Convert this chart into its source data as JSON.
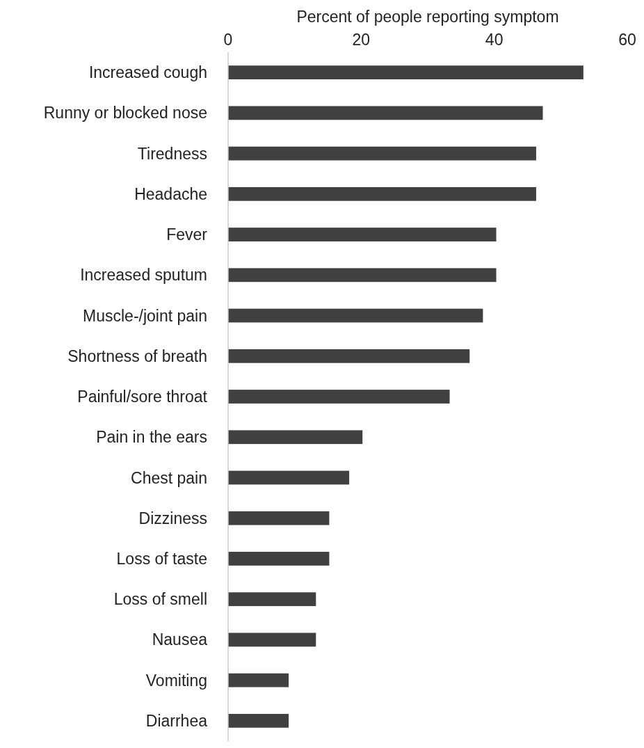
{
  "chart_data": {
    "type": "bar",
    "orientation": "horizontal",
    "xlabel": "Percent of people reporting symptom",
    "categories": [
      "Increased cough",
      "Runny or blocked nose",
      "Tiredness",
      "Headache",
      "Fever",
      "Increased sputum",
      "Muscle-/joint pain",
      "Shortness of breath",
      "Painful/sore throat",
      "Pain in the ears",
      "Chest pain",
      "Dizziness",
      "Loss of taste",
      "Loss of smell",
      "Nausea",
      "Vomiting",
      "Diarrhea"
    ],
    "values": [
      53.4,
      47.3,
      46.3,
      46.3,
      40.3,
      40.3,
      38.3,
      36.3,
      33.3,
      20.2,
      18.2,
      15.2,
      15.2,
      13.2,
      13.2,
      9.1,
      9.1
    ],
    "color": "#404040",
    "xlim": [
      0,
      60
    ],
    "xticks": [
      0,
      20,
      40,
      60
    ],
    "grid": false
  }
}
